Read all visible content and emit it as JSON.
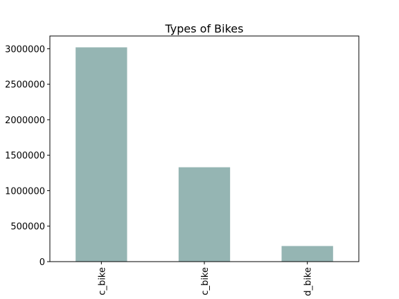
{
  "chart_data": {
    "type": "bar",
    "title": "Types of Bikes",
    "xlabel": "",
    "ylabel": "",
    "categories": [
      "c_bike",
      "c_bike",
      "d_bike"
    ],
    "values": [
      3020000,
      1330000,
      220000
    ],
    "ylim": [
      0,
      3180000
    ],
    "yticks": [
      0,
      500000,
      1000000,
      1500000,
      2000000,
      2500000,
      3000000
    ],
    "ytick_labels": [
      "0",
      "500000",
      "1000000",
      "1500000",
      "2000000",
      "2500000",
      "3000000"
    ],
    "bar_color": "#95b5b3",
    "grid": false,
    "legend": "none"
  }
}
